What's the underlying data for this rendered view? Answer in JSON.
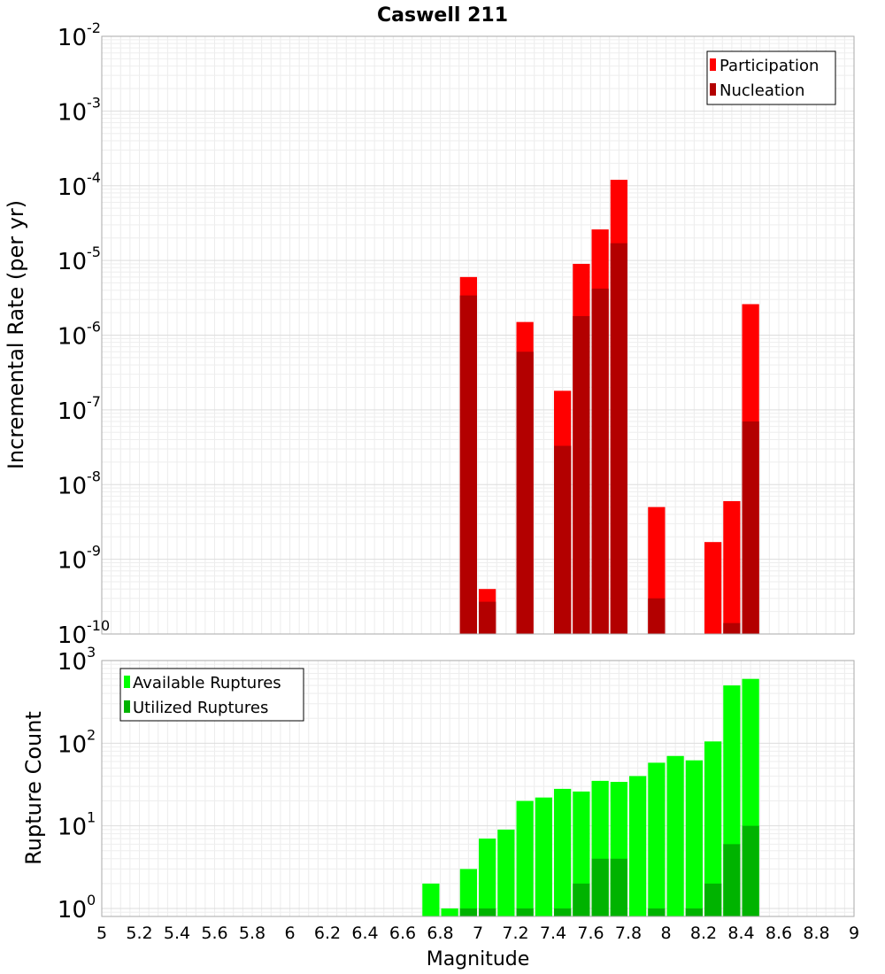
{
  "chart_data": [
    {
      "type": "bar",
      "title": "Caswell 211",
      "xlabel": "",
      "ylabel": "Incremental Rate (per yr)",
      "yscale": "log",
      "ylim": [
        1e-10,
        0.01
      ],
      "xlim": [
        5,
        9
      ],
      "y_decades": [
        {
          "base": "10",
          "exp": "-10"
        },
        {
          "base": "10",
          "exp": "-9"
        },
        {
          "base": "10",
          "exp": "-8"
        },
        {
          "base": "10",
          "exp": "-7"
        },
        {
          "base": "10",
          "exp": "-6"
        },
        {
          "base": "10",
          "exp": "-5"
        },
        {
          "base": "10",
          "exp": "-4"
        },
        {
          "base": "10",
          "exp": "-3"
        },
        {
          "base": "10",
          "exp": "-2"
        }
      ],
      "grid": true,
      "legend_placement": "top-right",
      "x": [
        6.95,
        7.05,
        7.25,
        7.45,
        7.55,
        7.65,
        7.75,
        7.95,
        8.25,
        8.35,
        8.45
      ],
      "series": [
        {
          "name": "Participation",
          "color": "#ff0000",
          "values": [
            6e-06,
            4e-10,
            1.5e-06,
            1.8e-07,
            9e-06,
            2.6e-05,
            0.00012,
            5e-09,
            1.7e-09,
            6e-09,
            2.6e-06
          ]
        },
        {
          "name": "Nucleation",
          "color": "#b30000",
          "values": [
            3.4e-06,
            2.7e-10,
            6e-07,
            3.3e-08,
            1.8e-06,
            4.2e-06,
            1.7e-05,
            3e-10,
            null,
            1.4e-10,
            7e-08
          ]
        }
      ]
    },
    {
      "type": "bar",
      "title": "",
      "xlabel": "Magnitude",
      "ylabel": "Rupture Count",
      "yscale": "log",
      "ylim": [
        0.8,
        1000
      ],
      "xlim": [
        5,
        9
      ],
      "y_decades": [
        {
          "base": "10",
          "exp": "0"
        },
        {
          "base": "10",
          "exp": "1"
        },
        {
          "base": "10",
          "exp": "2"
        },
        {
          "base": "10",
          "exp": "3"
        }
      ],
      "x_tick_labels": [
        "5",
        "5.2",
        "5.4",
        "5.6",
        "5.8",
        "6",
        "6.2",
        "6.4",
        "6.6",
        "6.8",
        "7",
        "7.2",
        "7.4",
        "7.6",
        "7.8",
        "8",
        "8.2",
        "8.4",
        "8.6",
        "8.8",
        "9"
      ],
      "grid": true,
      "legend_placement": "top-left",
      "x": [
        6.75,
        6.85,
        6.95,
        7.05,
        7.15,
        7.25,
        7.35,
        7.45,
        7.55,
        7.65,
        7.75,
        7.85,
        7.95,
        8.05,
        8.15,
        8.25,
        8.35,
        8.45
      ],
      "series": [
        {
          "name": "Available Ruptures",
          "color": "#00ff00",
          "values": [
            2,
            1,
            3,
            7,
            9,
            20,
            22,
            28,
            26,
            35,
            34,
            40,
            58,
            70,
            62,
            105,
            500,
            600
          ]
        },
        {
          "name": "Utilized Ruptures",
          "color": "#00b300",
          "values": [
            null,
            null,
            1,
            1,
            null,
            1,
            null,
            1,
            2,
            4,
            4,
            null,
            1,
            null,
            1,
            2,
            6,
            10
          ]
        }
      ]
    }
  ]
}
